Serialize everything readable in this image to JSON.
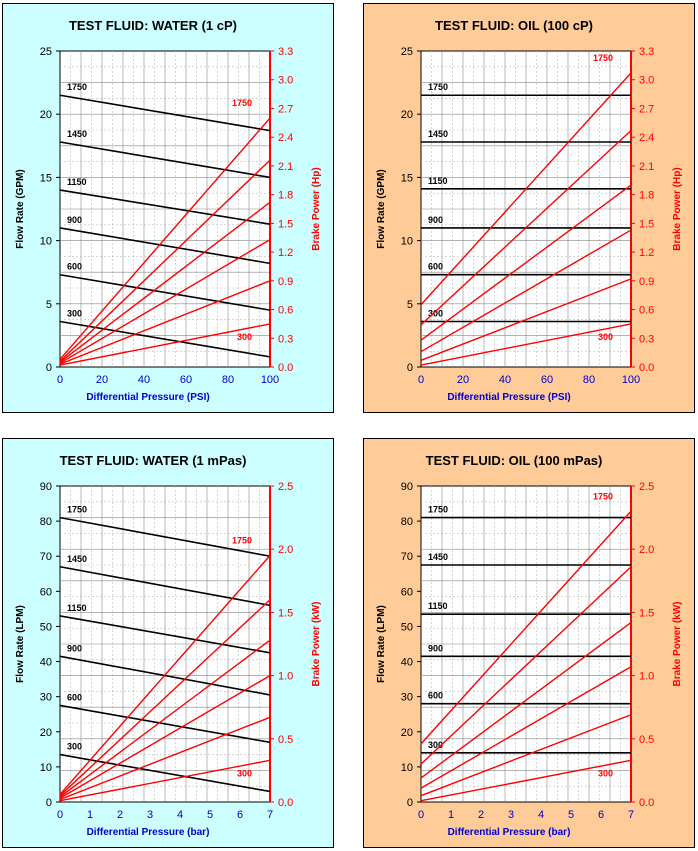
{
  "colors": {
    "water_bg": "#ccffff",
    "oil_bg": "#ffcc99",
    "flow_line": "#000000",
    "power_line": "#ff0000",
    "x_label": "#0000cc"
  },
  "chart_data": [
    {
      "type": "line",
      "theme": "water",
      "title": "TEST FLUID:  WATER (1 cP)",
      "xlabel": "Differential Pressure (PSI)",
      "ylabel": "Flow Rate (GPM)",
      "y2label": "Brake Power (Hp)",
      "xlim": [
        0,
        100
      ],
      "ylim": [
        0,
        25
      ],
      "y2lim": [
        0,
        3.3
      ],
      "xticks": [
        "0",
        "20",
        "40",
        "60",
        "80",
        "100"
      ],
      "yticks": [
        "0",
        "5",
        "10",
        "15",
        "20",
        "25"
      ],
      "y2ticks": [
        "0.0",
        "0.3",
        "0.6",
        "0.9",
        "1.2",
        "1.5",
        "1.8",
        "2.1",
        "2.4",
        "2.7",
        "3.0",
        "3.3"
      ],
      "grid": true,
      "flow_series": [
        {
          "name": "1750",
          "x": [
            0,
            100
          ],
          "y": [
            21.5,
            18.7
          ]
        },
        {
          "name": "1450",
          "x": [
            0,
            100
          ],
          "y": [
            17.8,
            15.0
          ]
        },
        {
          "name": "1150",
          "x": [
            0,
            100
          ],
          "y": [
            14.0,
            11.3
          ]
        },
        {
          "name": "900",
          "x": [
            0,
            100
          ],
          "y": [
            11.0,
            8.2
          ]
        },
        {
          "name": "600",
          "x": [
            0,
            100
          ],
          "y": [
            7.3,
            4.5
          ]
        },
        {
          "name": "300",
          "x": [
            0,
            100
          ],
          "y": [
            3.6,
            0.8
          ]
        }
      ],
      "power_series": [
        {
          "name": "1750",
          "x": [
            0,
            100
          ],
          "y": [
            0.08,
            2.6
          ]
        },
        {
          "name": "1450",
          "x": [
            0,
            100
          ],
          "y": [
            0.06,
            2.16
          ]
        },
        {
          "name": "1150",
          "x": [
            0,
            100
          ],
          "y": [
            0.05,
            1.72
          ]
        },
        {
          "name": "900",
          "x": [
            0,
            100
          ],
          "y": [
            0.04,
            1.33
          ]
        },
        {
          "name": "600",
          "x": [
            0,
            100
          ],
          "y": [
            0.03,
            0.9
          ]
        },
        {
          "name": "300",
          "x": [
            0,
            100
          ],
          "y": [
            0.02,
            0.45
          ]
        }
      ],
      "power_labels": [
        "1750",
        "300"
      ]
    },
    {
      "type": "line",
      "theme": "oil",
      "title": "TEST FLUID:  OIL (100 cP)",
      "xlabel": "Differential Pressure (PSI)",
      "ylabel": "Flow Rate (GPM)",
      "y2label": "Brake Power (Hp)",
      "xlim": [
        0,
        100
      ],
      "ylim": [
        0,
        25
      ],
      "y2lim": [
        0,
        3.3
      ],
      "xticks": [
        "0",
        "20",
        "40",
        "60",
        "80",
        "100"
      ],
      "yticks": [
        "0",
        "5",
        "10",
        "15",
        "20",
        "25"
      ],
      "y2ticks": [
        "0.0",
        "0.3",
        "0.6",
        "0.9",
        "1.2",
        "1.5",
        "1.8",
        "2.1",
        "2.4",
        "2.7",
        "3.0",
        "3.3"
      ],
      "grid": true,
      "flow_series": [
        {
          "name": "1750",
          "x": [
            0,
            100
          ],
          "y": [
            21.5,
            21.5
          ]
        },
        {
          "name": "1450",
          "x": [
            0,
            100
          ],
          "y": [
            17.8,
            17.8
          ]
        },
        {
          "name": "1150",
          "x": [
            0,
            100
          ],
          "y": [
            14.1,
            14.1
          ]
        },
        {
          "name": "900",
          "x": [
            0,
            100
          ],
          "y": [
            11.0,
            11.0
          ]
        },
        {
          "name": "600",
          "x": [
            0,
            100
          ],
          "y": [
            7.3,
            7.3
          ]
        },
        {
          "name": "300",
          "x": [
            0,
            100
          ],
          "y": [
            3.6,
            3.6
          ]
        }
      ],
      "power_series": [
        {
          "name": "1750",
          "x": [
            0,
            100
          ],
          "y": [
            0.65,
            3.07
          ]
        },
        {
          "name": "1450",
          "x": [
            0,
            100
          ],
          "y": [
            0.44,
            2.47
          ]
        },
        {
          "name": "1150",
          "x": [
            0,
            100
          ],
          "y": [
            0.28,
            1.9
          ]
        },
        {
          "name": "900",
          "x": [
            0,
            100
          ],
          "y": [
            0.16,
            1.43
          ]
        },
        {
          "name": "600",
          "x": [
            0,
            100
          ],
          "y": [
            0.07,
            0.92
          ]
        },
        {
          "name": "300",
          "x": [
            0,
            100
          ],
          "y": [
            0.02,
            0.45
          ]
        }
      ],
      "power_labels": [
        "1750",
        "300"
      ]
    },
    {
      "type": "line",
      "theme": "water",
      "title": "TEST FLUID:  WATER (1 mPas)",
      "xlabel": "Differential Pressure (bar)",
      "ylabel": "Flow Rate (LPM)",
      "y2label": "Brake Power (kW)",
      "xlim": [
        0,
        7
      ],
      "ylim": [
        0,
        90
      ],
      "y2lim": [
        0,
        2.5
      ],
      "xticks": [
        "0",
        "1",
        "2",
        "3",
        "4",
        "5",
        "6",
        "7"
      ],
      "yticks": [
        "0",
        "10",
        "20",
        "30",
        "40",
        "50",
        "60",
        "70",
        "80",
        "90"
      ],
      "y2ticks": [
        "0.0",
        "0.5",
        "1.0",
        "1.5",
        "2.0",
        "2.5"
      ],
      "grid": true,
      "flow_series": [
        {
          "name": "1750",
          "x": [
            0,
            7
          ],
          "y": [
            81,
            70
          ]
        },
        {
          "name": "1450",
          "x": [
            0,
            7
          ],
          "y": [
            67,
            56
          ]
        },
        {
          "name": "1150",
          "x": [
            0,
            7
          ],
          "y": [
            53,
            42.5
          ]
        },
        {
          "name": "900",
          "x": [
            0,
            7
          ],
          "y": [
            41.5,
            30.5
          ]
        },
        {
          "name": "600",
          "x": [
            0,
            7
          ],
          "y": [
            27.5,
            17
          ]
        },
        {
          "name": "300",
          "x": [
            0,
            7
          ],
          "y": [
            13.5,
            3
          ]
        }
      ],
      "power_series": [
        {
          "name": "1750",
          "x": [
            0,
            7
          ],
          "y": [
            0.06,
            1.95
          ]
        },
        {
          "name": "1450",
          "x": [
            0,
            7
          ],
          "y": [
            0.05,
            1.6
          ]
        },
        {
          "name": "1150",
          "x": [
            0,
            7
          ],
          "y": [
            0.04,
            1.28
          ]
        },
        {
          "name": "900",
          "x": [
            0,
            7
          ],
          "y": [
            0.03,
            1.0
          ]
        },
        {
          "name": "600",
          "x": [
            0,
            7
          ],
          "y": [
            0.02,
            0.67
          ]
        },
        {
          "name": "300",
          "x": [
            0,
            7
          ],
          "y": [
            0.01,
            0.33
          ]
        }
      ],
      "power_labels": [
        "1750",
        "300"
      ]
    },
    {
      "type": "line",
      "theme": "oil",
      "title": "TEST FLUID:  OIL (100 mPas)",
      "xlabel": "Differential Pressure (bar)",
      "ylabel": "Flow Rate (LPM)",
      "y2label": "Brake Power (kW)",
      "xlim": [
        0,
        7
      ],
      "ylim": [
        0,
        90
      ],
      "y2lim": [
        0,
        2.5
      ],
      "xticks": [
        "0",
        "1",
        "2",
        "3",
        "4",
        "5",
        "6",
        "7"
      ],
      "yticks": [
        "0",
        "10",
        "20",
        "30",
        "40",
        "50",
        "60",
        "70",
        "80",
        "90"
      ],
      "y2ticks": [
        "0.0",
        "0.5",
        "1.0",
        "1.5",
        "2.0",
        "2.5"
      ],
      "grid": true,
      "flow_series": [
        {
          "name": "1750",
          "x": [
            0,
            7
          ],
          "y": [
            81,
            81
          ]
        },
        {
          "name": "1450",
          "x": [
            0,
            7
          ],
          "y": [
            67.5,
            67.5
          ]
        },
        {
          "name": "1150",
          "x": [
            0,
            7
          ],
          "y": [
            53.5,
            53.5
          ]
        },
        {
          "name": "900",
          "x": [
            0,
            7
          ],
          "y": [
            41.5,
            41.5
          ]
        },
        {
          "name": "600",
          "x": [
            0,
            7
          ],
          "y": [
            28,
            28
          ]
        },
        {
          "name": "300",
          "x": [
            0,
            7
          ],
          "y": [
            14,
            14
          ]
        }
      ],
      "power_series": [
        {
          "name": "1750",
          "x": [
            0,
            7
          ],
          "y": [
            0.46,
            2.3
          ]
        },
        {
          "name": "1450",
          "x": [
            0,
            7
          ],
          "y": [
            0.3,
            1.86
          ]
        },
        {
          "name": "1150",
          "x": [
            0,
            7
          ],
          "y": [
            0.19,
            1.42
          ]
        },
        {
          "name": "900",
          "x": [
            0,
            7
          ],
          "y": [
            0.11,
            1.07
          ]
        },
        {
          "name": "600",
          "x": [
            0,
            7
          ],
          "y": [
            0.05,
            0.69
          ]
        },
        {
          "name": "300",
          "x": [
            0,
            7
          ],
          "y": [
            0.01,
            0.33
          ]
        }
      ],
      "power_labels": [
        "1750",
        "300"
      ]
    }
  ]
}
